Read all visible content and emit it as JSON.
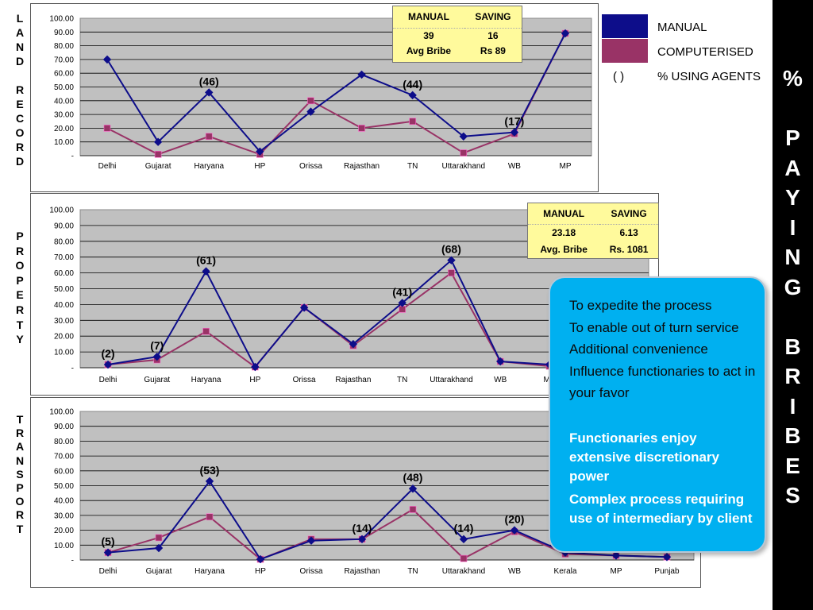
{
  "left_labels": {
    "land": [
      "L",
      "A",
      "N",
      "D",
      "",
      "R",
      "E",
      "C",
      "O",
      "R",
      "D"
    ],
    "property": [
      "P",
      "R",
      "O",
      "P",
      "E",
      "R",
      "T",
      "Y"
    ],
    "transport": [
      "T",
      "R",
      "A",
      "N",
      "S",
      "P",
      "O",
      "R",
      "T"
    ]
  },
  "right_title": [
    "%",
    "",
    "P",
    "A",
    "Y",
    "I",
    "N",
    "G",
    "",
    "B",
    "R",
    "I",
    "B",
    "E",
    "S"
  ],
  "legend": {
    "manual": "MANUAL",
    "computerised": "COMPUTERISED",
    "paren": "(   )",
    "agents": "% USING AGENTS",
    "manual_color": "#0d0d8a",
    "computerised_color": "#993366"
  },
  "info_land": {
    "h1": "MANUAL",
    "h2": "SAVING",
    "v1": "39",
    "v2": "16",
    "l1": "Avg Bribe",
    "l2": "Rs 89"
  },
  "info_property": {
    "h1": "MANUAL",
    "h2": "SAVING",
    "v1": "23.18",
    "v2": "6.13",
    "l1": "Avg. Bribe",
    "l2": "Rs. 1081"
  },
  "reasons": {
    "regular": [
      "To expedite the process",
      "To enable out of turn service",
      "Additional convenience",
      "Influence functionaries to act in your favor"
    ],
    "bold": [
      "Functionaries enjoy extensive discretionary power",
      "Complex process requiring use of intermediary by client"
    ]
  },
  "chart_data": [
    {
      "type": "line",
      "title": "LAND RECORD",
      "categories": [
        "Delhi",
        "Gujarat",
        "Haryana",
        "HP",
        "Orissa",
        "Rajasthan",
        "TN",
        "Uttarakhand",
        "WB",
        "MP"
      ],
      "series": [
        {
          "name": "MANUAL",
          "color": "#0d0d8a",
          "marker": "diamond",
          "values": [
            70,
            10,
            46,
            3,
            32,
            59,
            44,
            14,
            17,
            89
          ]
        },
        {
          "name": "COMPUTERISED",
          "color": "#993366",
          "marker": "square",
          "values": [
            20,
            1,
            14,
            1,
            40,
            20,
            25,
            2,
            16,
            89
          ]
        }
      ],
      "annotations": [
        {
          "index": 2,
          "text": "(46)"
        },
        {
          "index": 6,
          "text": "(44)"
        },
        {
          "index": 8,
          "text": "(17)"
        }
      ],
      "yticks": [
        "100.00",
        "90.00",
        "80.00",
        "70.00",
        "60.00",
        "50.00",
        "40.00",
        "30.00",
        "20.00",
        "10.00",
        "-"
      ],
      "ylim": [
        0,
        100
      ],
      "grid": true
    },
    {
      "type": "line",
      "title": "PROPERTY",
      "categories": [
        "Delhi",
        "Gujarat",
        "Haryana",
        "HP",
        "Orissa",
        "Rajasthan",
        "TN",
        "Uttarakhand",
        "WB",
        "MP"
      ],
      "series": [
        {
          "name": "MANUAL",
          "color": "#0d0d8a",
          "marker": "diamond",
          "values": [
            2,
            7,
            61,
            0.5,
            38,
            15,
            41,
            68,
            4,
            2
          ]
        },
        {
          "name": "COMPUTERISED",
          "color": "#993366",
          "marker": "square",
          "values": [
            2,
            5,
            23,
            0.5,
            38,
            14,
            37,
            60,
            4,
            1
          ]
        }
      ],
      "annotations": [
        {
          "index": 0,
          "text": "(2)"
        },
        {
          "index": 1,
          "text": "(7)"
        },
        {
          "index": 2,
          "text": "(61)"
        },
        {
          "index": 6,
          "text": "(41)"
        },
        {
          "index": 7,
          "text": "(68)"
        }
      ],
      "yticks": [
        "100.00",
        "90.00",
        "80.00",
        "70.00",
        "60.00",
        "50.00",
        "40.00",
        "30.00",
        "20.00",
        "10.00",
        "-"
      ],
      "ylim": [
        0,
        100
      ],
      "grid": true
    },
    {
      "type": "line",
      "title": "TRANSPORT",
      "categories": [
        "Delhi",
        "Gujarat",
        "Haryana",
        "HP",
        "Orissa",
        "Rajasthan",
        "TN",
        "Uttarakhand",
        "WB",
        "Kerala",
        "MP",
        "Punjab"
      ],
      "series": [
        {
          "name": "MANUAL",
          "color": "#0d0d8a",
          "marker": "diamond",
          "values": [
            5,
            8,
            53,
            0.5,
            13,
            14,
            48,
            14,
            20,
            5,
            3,
            2
          ]
        },
        {
          "name": "COMPUTERISED",
          "color": "#993366",
          "marker": "square",
          "values": [
            5,
            15,
            29,
            0.5,
            14,
            14,
            34,
            1,
            19,
            4,
            3,
            2
          ]
        }
      ],
      "annotations": [
        {
          "index": 0,
          "text": "(5)"
        },
        {
          "index": 2,
          "text": "(53)"
        },
        {
          "index": 5,
          "text": "(14)"
        },
        {
          "index": 6,
          "text": "(48)"
        },
        {
          "index": 7,
          "text": "(14)"
        },
        {
          "index": 8,
          "text": "(20)"
        }
      ],
      "yticks": [
        "100.00",
        "90.00",
        "80.00",
        "70.00",
        "60.00",
        "50.00",
        "40.00",
        "30.00",
        "20.00",
        "10.00",
        "-"
      ],
      "ylim": [
        0,
        100
      ],
      "grid": true
    }
  ]
}
